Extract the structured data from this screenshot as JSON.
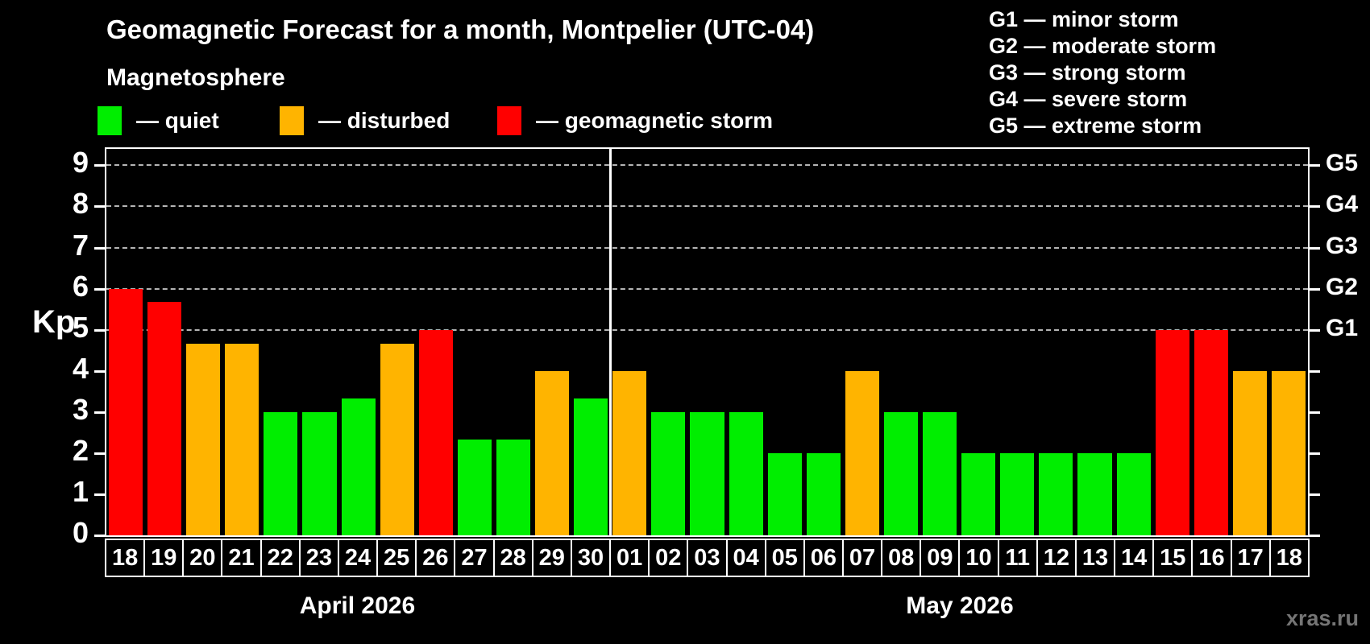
{
  "header": {
    "title": "Geomagnetic Forecast for a month, Montpelier (UTC-04)"
  },
  "legend": {
    "title": "Magnetosphere",
    "items": [
      {
        "name": "quiet",
        "label": "— quiet",
        "color": "#00ee00"
      },
      {
        "name": "disturbed",
        "label": "— disturbed",
        "color": "#ffb400"
      },
      {
        "name": "storm",
        "label": "— geomagnetic storm",
        "color": "#ff0000"
      }
    ]
  },
  "storm_scale_legend": [
    "G1 — minor storm",
    "G2 — moderate storm",
    "G3 — strong storm",
    "G4 — severe storm",
    "G5 — extreme storm"
  ],
  "watermark": "xras.ru",
  "chart_data": {
    "type": "bar",
    "title": "Geomagnetic Forecast for a month, Montpelier (UTC-04)",
    "xlabel": "",
    "ylabel": "Kp",
    "ylim": [
      0,
      9.4
    ],
    "yticks": [
      0,
      1,
      2,
      3,
      4,
      5,
      6,
      7,
      8,
      9
    ],
    "gridlines": [
      5,
      6,
      7,
      8,
      9
    ],
    "grid_style": "dashed horizontal lines at storm levels G1–G5 only",
    "legend_position": "top",
    "right_axis_labels": [
      {
        "value": 5,
        "label": "G1"
      },
      {
        "value": 6,
        "label": "G2"
      },
      {
        "value": 7,
        "label": "G3"
      },
      {
        "value": 8,
        "label": "G4"
      },
      {
        "value": 9,
        "label": "G5"
      }
    ],
    "status_colors": {
      "quiet": "#00ee00",
      "disturbed": "#ffb400",
      "storm": "#ff0000"
    },
    "groups": [
      {
        "label": "April 2026",
        "count": 13
      },
      {
        "label": "May 2026",
        "count": 18
      }
    ],
    "bars": [
      {
        "day": "18",
        "month": "April 2026",
        "value": 6.0,
        "status": "storm"
      },
      {
        "day": "19",
        "month": "April 2026",
        "value": 5.67,
        "status": "storm"
      },
      {
        "day": "20",
        "month": "April 2026",
        "value": 4.67,
        "status": "disturbed"
      },
      {
        "day": "21",
        "month": "April 2026",
        "value": 4.67,
        "status": "disturbed"
      },
      {
        "day": "22",
        "month": "April 2026",
        "value": 3.0,
        "status": "quiet"
      },
      {
        "day": "23",
        "month": "April 2026",
        "value": 3.0,
        "status": "quiet"
      },
      {
        "day": "24",
        "month": "April 2026",
        "value": 3.33,
        "status": "quiet"
      },
      {
        "day": "25",
        "month": "April 2026",
        "value": 4.67,
        "status": "disturbed"
      },
      {
        "day": "26",
        "month": "April 2026",
        "value": 5.0,
        "status": "storm"
      },
      {
        "day": "27",
        "month": "April 2026",
        "value": 2.33,
        "status": "quiet"
      },
      {
        "day": "28",
        "month": "April 2026",
        "value": 2.33,
        "status": "quiet"
      },
      {
        "day": "29",
        "month": "April 2026",
        "value": 4.0,
        "status": "disturbed"
      },
      {
        "day": "30",
        "month": "April 2026",
        "value": 3.33,
        "status": "quiet"
      },
      {
        "day": "01",
        "month": "May 2026",
        "value": 4.0,
        "status": "disturbed"
      },
      {
        "day": "02",
        "month": "May 2026",
        "value": 3.0,
        "status": "quiet"
      },
      {
        "day": "03",
        "month": "May 2026",
        "value": 3.0,
        "status": "quiet"
      },
      {
        "day": "04",
        "month": "May 2026",
        "value": 3.0,
        "status": "quiet"
      },
      {
        "day": "05",
        "month": "May 2026",
        "value": 2.0,
        "status": "quiet"
      },
      {
        "day": "06",
        "month": "May 2026",
        "value": 2.0,
        "status": "quiet"
      },
      {
        "day": "07",
        "month": "May 2026",
        "value": 4.0,
        "status": "disturbed"
      },
      {
        "day": "08",
        "month": "May 2026",
        "value": 3.0,
        "status": "quiet"
      },
      {
        "day": "09",
        "month": "May 2026",
        "value": 3.0,
        "status": "quiet"
      },
      {
        "day": "10",
        "month": "May 2026",
        "value": 2.0,
        "status": "quiet"
      },
      {
        "day": "11",
        "month": "May 2026",
        "value": 2.0,
        "status": "quiet"
      },
      {
        "day": "12",
        "month": "May 2026",
        "value": 2.0,
        "status": "quiet"
      },
      {
        "day": "13",
        "month": "May 2026",
        "value": 2.0,
        "status": "quiet"
      },
      {
        "day": "14",
        "month": "May 2026",
        "value": 2.0,
        "status": "quiet"
      },
      {
        "day": "15",
        "month": "May 2026",
        "value": 5.0,
        "status": "storm"
      },
      {
        "day": "16",
        "month": "May 2026",
        "value": 5.0,
        "status": "storm"
      },
      {
        "day": "17",
        "month": "May 2026",
        "value": 4.0,
        "status": "disturbed"
      },
      {
        "day": "18",
        "month": "May 2026",
        "value": 4.0,
        "status": "disturbed"
      }
    ]
  }
}
